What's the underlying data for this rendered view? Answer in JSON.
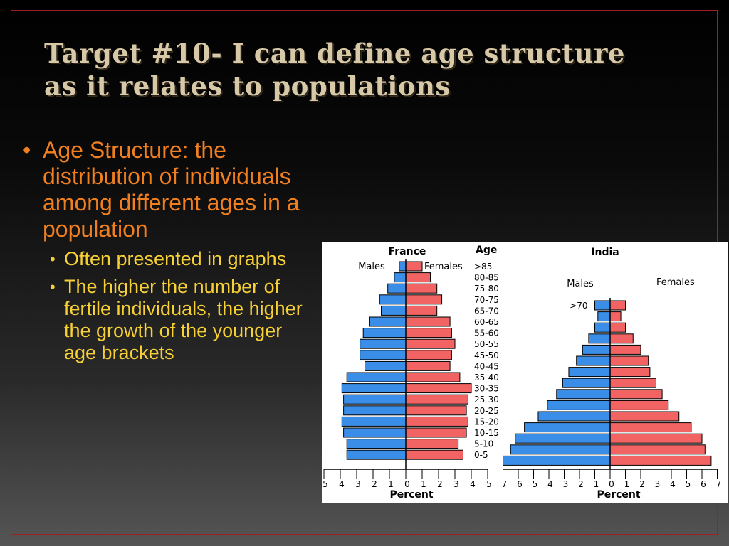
{
  "slide": {
    "title_line1": "Target #10- I can define age structure",
    "title_line2": "as it relates to populations",
    "bullet_main": "Age Structure: the distribution of individuals among different ages in a population",
    "sub_bullets": [
      "Often presented in graphs",
      "The higher the number of fertile individuals, the higher the growth of the younger age brackets"
    ],
    "bullet_char": "•"
  },
  "colors": {
    "title": "#d7c9a8",
    "main_bullet": "#f07f20",
    "sub_bullet": "#f7d035",
    "male_bar": "#3a8ee8",
    "female_bar": "#f26464",
    "frame": "#a02020"
  },
  "chart_data": [
    {
      "type": "bar",
      "orientation": "horizontal-pyramid",
      "title": "France",
      "age_header": "Age",
      "xlabel": "Percent",
      "male_label": "Males",
      "female_label": "Females",
      "xlim": [
        -5,
        5
      ],
      "x_ticks": [
        "5",
        "4",
        "3",
        "2",
        "1",
        "0",
        "1",
        "2",
        "3",
        "4",
        "5"
      ],
      "categories": [
        ">85",
        "80-85",
        "75-80",
        "70-75",
        "65-70",
        "60-65",
        "55-60",
        "50-55",
        "45-50",
        "40-45",
        "35-40",
        "30-35",
        "25-30",
        "20-25",
        "15-20",
        "10-15",
        "5-10",
        "0-5"
      ],
      "series": [
        {
          "name": "Males",
          "values": [
            0.4,
            0.7,
            1.1,
            1.6,
            1.5,
            2.2,
            2.6,
            2.8,
            2.8,
            2.5,
            3.6,
            3.9,
            3.8,
            3.8,
            3.9,
            3.8,
            3.6,
            3.6
          ]
        },
        {
          "name": "Females",
          "values": [
            1.0,
            1.5,
            1.9,
            2.2,
            1.9,
            2.7,
            2.8,
            3.0,
            2.8,
            2.7,
            3.3,
            4.0,
            3.8,
            3.7,
            3.8,
            3.7,
            3.2,
            3.5
          ]
        }
      ]
    },
    {
      "type": "bar",
      "orientation": "horizontal-pyramid",
      "title": "India",
      "xlabel": "Percent",
      "male_label": "Males",
      "female_label": "Females",
      "xlim": [
        -7,
        7
      ],
      "x_ticks": [
        "7",
        "6",
        "5",
        "4",
        "3",
        "2",
        "1",
        "0",
        "1",
        "2",
        "3",
        "4",
        "5",
        "6",
        "7"
      ],
      "categories": [
        ">70",
        "65-70",
        "60-65",
        "55-60",
        "50-55",
        "45-50",
        "40-45",
        "35-40",
        "30-35",
        "25-30",
        "20-25",
        "15-20",
        "10-15",
        "5-10",
        "0-5"
      ],
      "series": [
        {
          "name": "Males",
          "values": [
            1.0,
            0.8,
            1.0,
            1.4,
            1.8,
            2.2,
            2.7,
            3.1,
            3.5,
            4.1,
            4.7,
            5.6,
            6.2,
            6.5,
            7.0
          ]
        },
        {
          "name": "Females",
          "values": [
            1.0,
            0.7,
            1.0,
            1.5,
            2.0,
            2.5,
            2.6,
            3.0,
            3.4,
            3.8,
            4.5,
            5.3,
            6.0,
            6.2,
            6.6
          ]
        }
      ]
    }
  ]
}
